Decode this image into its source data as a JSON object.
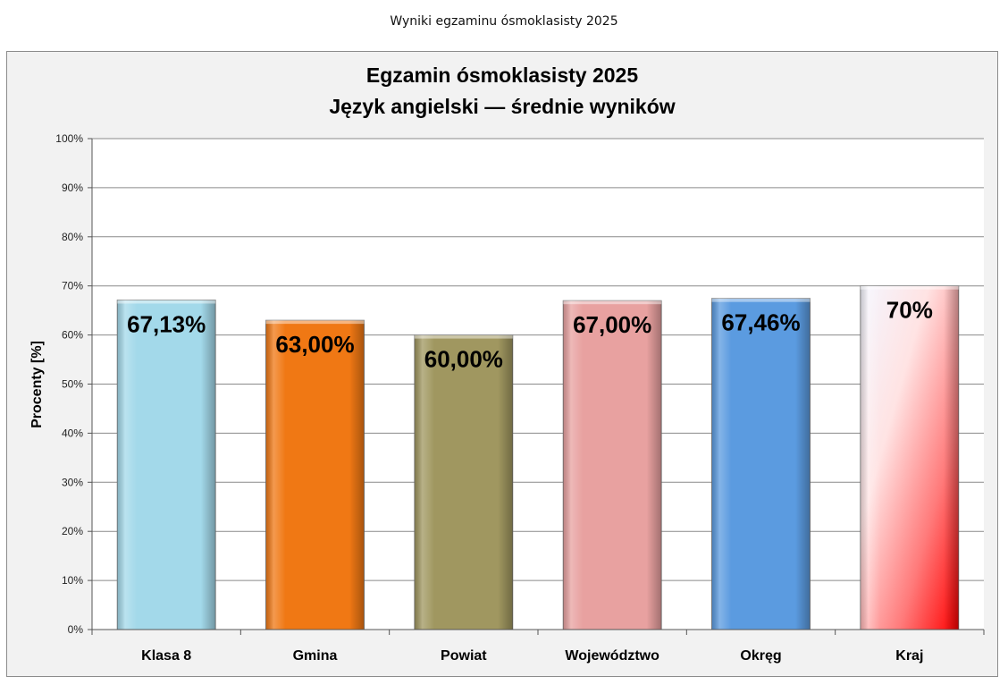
{
  "page": {
    "header": "Wyniki egzaminu ósmoklasisty 2025"
  },
  "chart_data": {
    "type": "bar",
    "title": "Egzamin ósmoklasisty 2025",
    "subtitle": "Język angielski — średnie wyników",
    "xlabel": "",
    "ylabel": "Procenty [%]",
    "ylim": [
      0,
      100
    ],
    "yticks": [
      "0%",
      "10%",
      "20%",
      "30%",
      "40%",
      "50%",
      "60%",
      "70%",
      "80%",
      "90%",
      "100%"
    ],
    "grid": true,
    "categories": [
      "Klasa 8",
      "Gmina",
      "Powiat",
      "Województwo",
      "Okręg",
      "Kraj"
    ],
    "values": [
      67.13,
      63.0,
      60.0,
      67.0,
      67.46,
      70
    ],
    "data_labels": [
      "67,13%",
      "63,00%",
      "60,00%",
      "67,00%",
      "67,46%",
      "70%"
    ],
    "colors": [
      "#a3d9ea",
      "#f07814",
      "#a09760",
      "#e8a1a0",
      "#5b9be0",
      "#ff0000"
    ]
  }
}
